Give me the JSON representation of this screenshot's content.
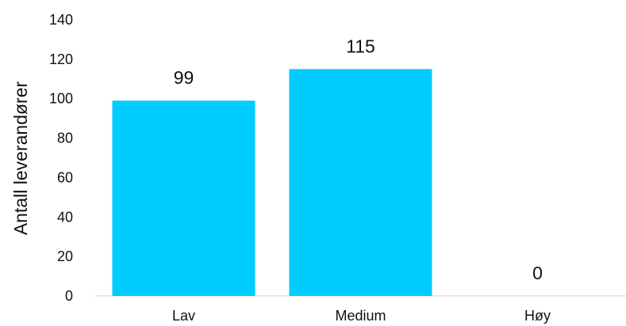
{
  "chart_data": {
    "type": "bar",
    "categories": [
      "Lav",
      "Medium",
      "Høy"
    ],
    "values": [
      99,
      115,
      0
    ],
    "ylabel": "Antall leverandører",
    "ylim": [
      0,
      140
    ],
    "yticks": [
      0,
      20,
      40,
      60,
      80,
      100,
      120,
      140
    ],
    "grid": false,
    "legend": "none",
    "data_labels": true,
    "bar_color": "#00CCFF"
  }
}
